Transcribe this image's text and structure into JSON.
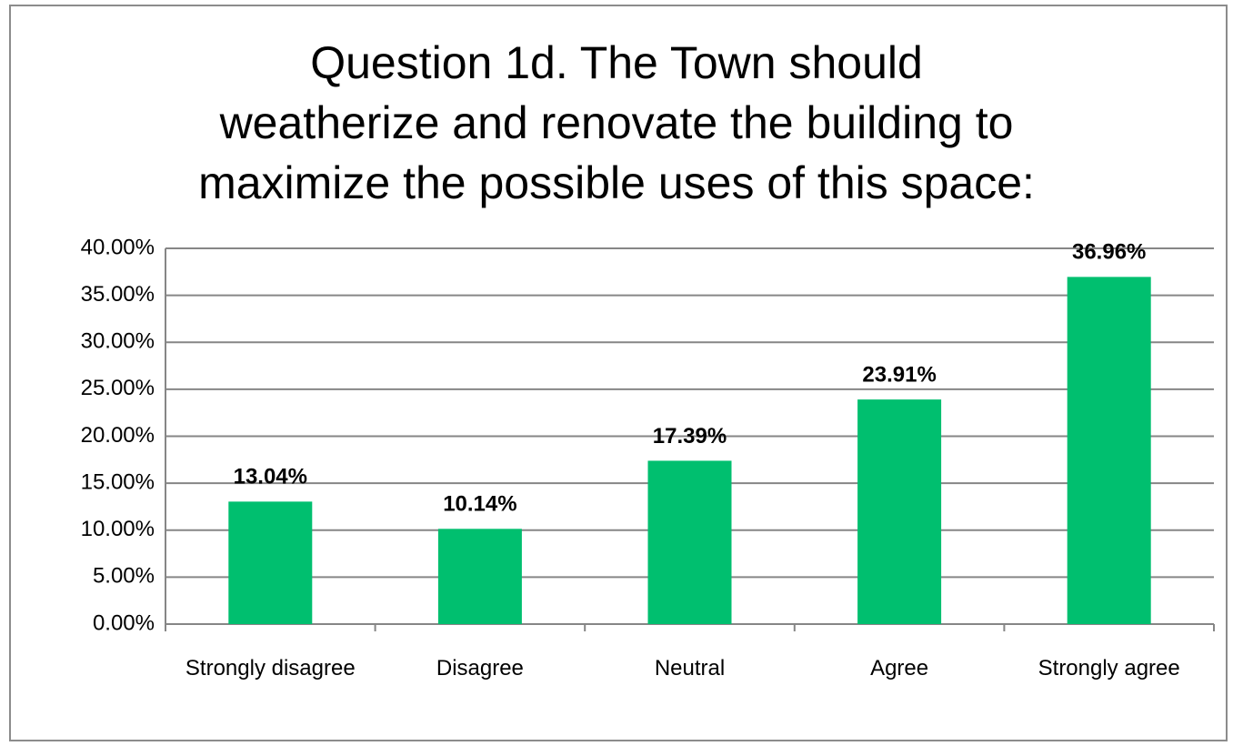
{
  "chart_data": {
    "type": "bar",
    "title": [
      "Question 1d. The Town should",
      "weatherize and renovate the building to",
      "maximize the possible uses of this space:"
    ],
    "categories": [
      "Strongly disagree",
      "Disagree",
      "Neutral",
      "Agree",
      "Strongly agree"
    ],
    "values": [
      13.04,
      10.14,
      17.39,
      23.91,
      36.96
    ],
    "value_labels": [
      "13.04%",
      "10.14%",
      "17.39%",
      "23.91%",
      "36.96%"
    ],
    "color": "#00bf6f",
    "ylim": [
      0,
      40
    ],
    "yticks": [
      {
        "value": 0,
        "label": "0.00%"
      },
      {
        "value": 5,
        "label": "5.00%"
      },
      {
        "value": 10,
        "label": "10.00%"
      },
      {
        "value": 15,
        "label": "15.00%"
      },
      {
        "value": 20,
        "label": "20.00%"
      },
      {
        "value": 25,
        "label": "25.00%"
      },
      {
        "value": 30,
        "label": "30.00%"
      },
      {
        "value": 35,
        "label": "35.00%"
      },
      {
        "value": 40,
        "label": "40.00%"
      }
    ],
    "grid": true
  }
}
